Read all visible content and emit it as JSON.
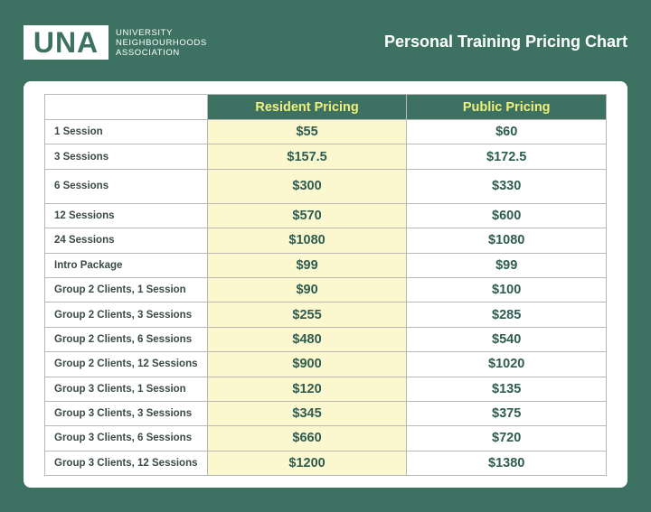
{
  "header": {
    "logo_mark": "UNA",
    "logo_lines": [
      "UNIVERSITY",
      "NEIGHBOURHOODS",
      "ASSOCIATION"
    ],
    "title": "Personal Training Pricing Chart"
  },
  "table": {
    "columns": [
      "",
      "Resident Pricing",
      "Public Pricing"
    ],
    "rows": [
      {
        "label": "1 Session",
        "resident": "$55",
        "public": "$60"
      },
      {
        "label": "3 Sessions",
        "resident": "$157.5",
        "public": "$172.5"
      },
      {
        "label": "6 Sessions",
        "resident": "$300",
        "public": "$330"
      },
      {
        "label": "12 Sessions",
        "resident": "$570",
        "public": "$600"
      },
      {
        "label": "24 Sessions",
        "resident": "$1080",
        "public": "$1080"
      },
      {
        "label": "Intro Package",
        "resident": "$99",
        "public": "$99"
      },
      {
        "label": "Group 2 Clients, 1 Session",
        "resident": "$90",
        "public": "$100"
      },
      {
        "label": "Group 2 Clients, 3 Sessions",
        "resident": "$255",
        "public": "$285"
      },
      {
        "label": "Group 2 Clients, 6 Sessions",
        "resident": "$480",
        "public": "$540"
      },
      {
        "label": "Group 2 Clients, 12 Sessions",
        "resident": "$900",
        "public": "$1020"
      },
      {
        "label": "Group 3 Clients, 1 Session",
        "resident": "$120",
        "public": "$135"
      },
      {
        "label": "Group 3 Clients, 3 Sessions",
        "resident": "$345",
        "public": "$375"
      },
      {
        "label": "Group 3 Clients, 6 Sessions",
        "resident": "$660",
        "public": "$720"
      },
      {
        "label": "Group 3 Clients, 12 Sessions",
        "resident": "$1200",
        "public": "$1380"
      }
    ]
  },
  "colors": {
    "background": "#3d7262",
    "header_text": "#eef27a",
    "resident_fill": "#fbf8cf"
  }
}
